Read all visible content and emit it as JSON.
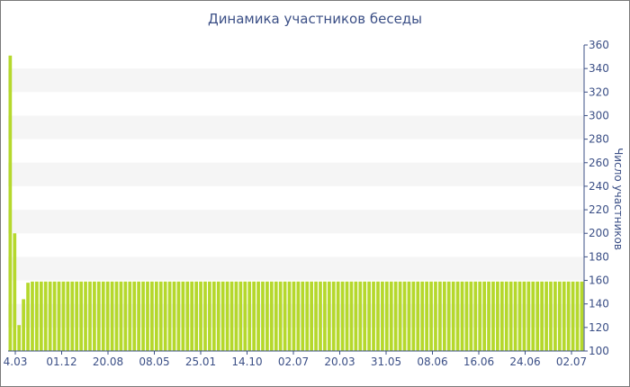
{
  "chart_data": {
    "type": "bar",
    "title": "Динамика участников беседы",
    "ylabel": "Число участников",
    "ylim": [
      100,
      360
    ],
    "yticks": [
      100,
      120,
      140,
      160,
      180,
      200,
      220,
      240,
      260,
      280,
      300,
      320,
      340,
      360
    ],
    "xticks": [
      "4.03",
      "01.12",
      "20.08",
      "08.05",
      "25.01",
      "14.10",
      "02.07",
      "20.03",
      "31.05",
      "08.06",
      "16.06",
      "24.06",
      "02.07"
    ],
    "values": [
      351,
      200,
      122,
      144,
      158,
      159,
      159,
      159,
      159,
      159,
      159,
      159,
      159,
      159,
      159,
      159,
      159,
      159,
      159,
      159,
      159,
      159,
      159,
      159,
      159,
      159,
      159,
      159,
      159,
      159,
      159,
      159,
      159,
      159,
      159,
      159,
      159,
      159,
      159,
      159,
      159,
      159,
      159,
      159,
      159,
      159,
      159,
      159,
      159,
      159,
      159,
      159,
      159,
      159,
      159,
      159,
      159,
      159,
      159,
      159,
      159,
      159,
      159,
      159,
      159,
      159,
      159,
      159,
      159,
      159,
      159,
      159,
      159,
      159,
      159,
      159,
      159,
      159,
      159,
      159,
      159,
      159,
      159,
      159,
      159,
      159,
      159,
      159,
      159,
      159,
      159,
      159,
      159,
      159,
      159,
      159,
      159,
      159,
      159,
      159,
      159,
      159,
      159,
      159,
      159,
      159,
      159,
      159,
      159,
      159,
      159,
      159,
      159,
      159,
      159,
      159,
      159,
      159,
      159,
      159,
      159,
      159,
      159,
      159,
      159,
      159,
      159,
      159,
      159,
      159
    ],
    "grid": true,
    "bar_color": "#b5d82c",
    "band_color": "#f5f5f5",
    "axis_color": "#3b4f86",
    "border_color": "#7a7a7a"
  }
}
